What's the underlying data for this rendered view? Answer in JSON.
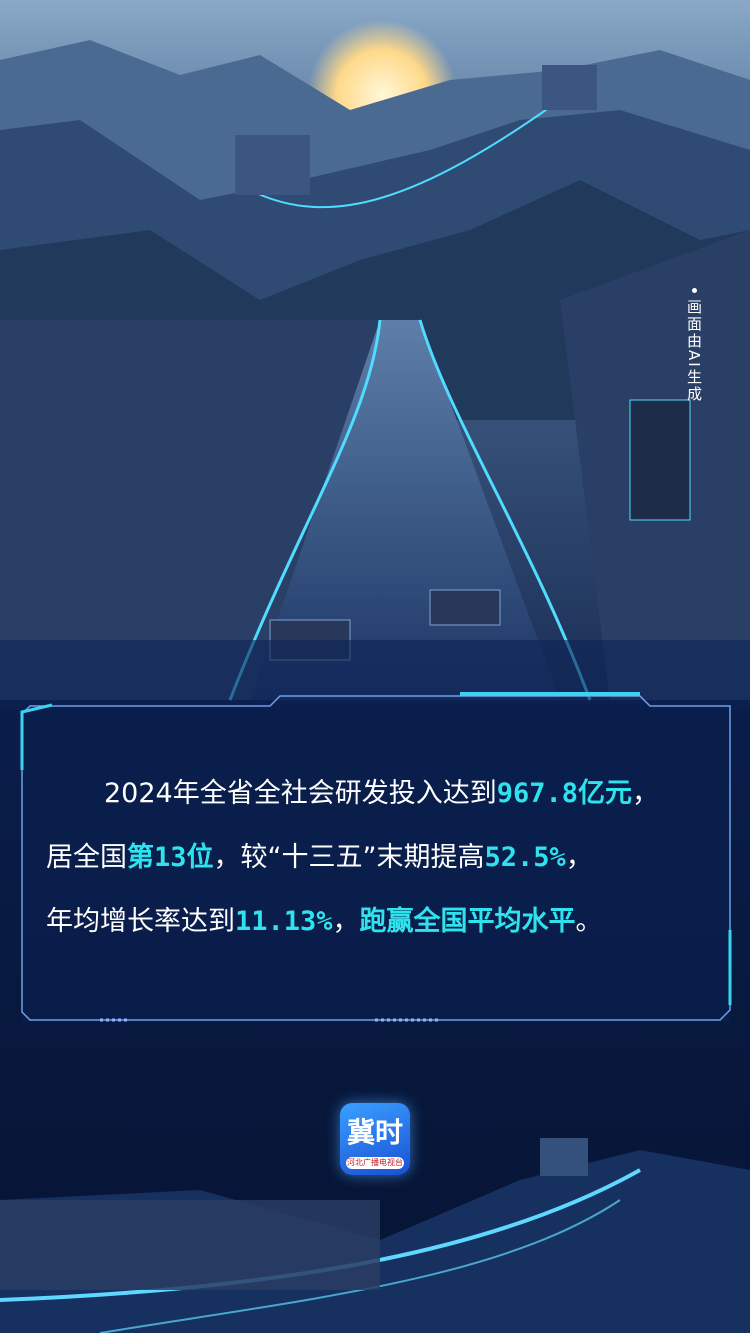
{
  "caption": "画面由AI生成",
  "content": {
    "lines": [
      [
        {
          "text": "2024年全省全社会研发投入达到"
        },
        {
          "text": "967.8亿元",
          "highlight": true
        },
        {
          "text": "，"
        }
      ],
      [
        {
          "text": "居全国"
        },
        {
          "text": "第13位",
          "highlight": true
        },
        {
          "text": "，较“十三五”末期提高"
        },
        {
          "text": "52.5%",
          "highlight": true
        },
        {
          "text": "，"
        }
      ],
      [
        {
          "text": "年均增长率达到"
        },
        {
          "text": "11.13%",
          "highlight": true
        },
        {
          "text": "，"
        },
        {
          "text": "跑赢全国平均水平",
          "highlight": true
        },
        {
          "text": "。"
        }
      ]
    ]
  },
  "logo": {
    "title": "冀时",
    "subtitle": "河北广播电视台"
  }
}
